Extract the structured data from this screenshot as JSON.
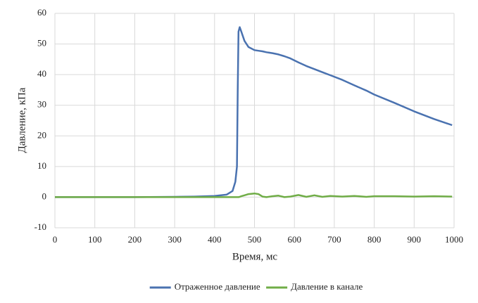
{
  "chart_data": {
    "type": "line",
    "x_label": "Время, мс",
    "y_label": "Давление, кПа",
    "x": [
      0,
      100,
      200,
      300,
      350,
      400,
      430,
      445,
      452,
      456,
      458,
      460,
      463,
      467,
      475,
      485,
      500,
      510,
      520,
      530,
      545,
      560,
      575,
      590,
      610,
      630,
      650,
      670,
      690,
      720,
      750,
      780,
      800,
      850,
      900,
      950,
      995
    ],
    "series": [
      {
        "name": "Отраженное давление",
        "color": "#4a72b0",
        "values": [
          0,
          0,
          0,
          0.1,
          0.2,
          0.4,
          0.8,
          2,
          5,
          10,
          35,
          54,
          55.5,
          54,
          51,
          49,
          48,
          47.8,
          47.6,
          47.3,
          47,
          46.6,
          46,
          45.3,
          44,
          42.8,
          41.8,
          40.8,
          39.8,
          38.3,
          36.5,
          34.8,
          33.5,
          30.8,
          28,
          25.5,
          23.5
        ]
      },
      {
        "name": "Давление в канале",
        "color": "#70ad47",
        "values": [
          0,
          0,
          0,
          0,
          0,
          0,
          0,
          0,
          0,
          0,
          0,
          0,
          0.1,
          0.3,
          0.6,
          1,
          1.2,
          1,
          0.2,
          0,
          0.3,
          0.5,
          0,
          0.2,
          0.7,
          0.1,
          0.6,
          0.1,
          0.4,
          0.2,
          0.4,
          0.1,
          0.3,
          0.3,
          0.2,
          0.3,
          0.2
        ]
      }
    ],
    "xlim": [
      0,
      1000
    ],
    "xticks": [
      0,
      100,
      200,
      300,
      400,
      500,
      600,
      700,
      800,
      900,
      1000
    ],
    "ylim": [
      -10,
      60
    ],
    "yticks": [
      -10,
      0,
      10,
      20,
      30,
      40,
      50,
      60
    ],
    "grid": true,
    "legend": "bottom"
  }
}
